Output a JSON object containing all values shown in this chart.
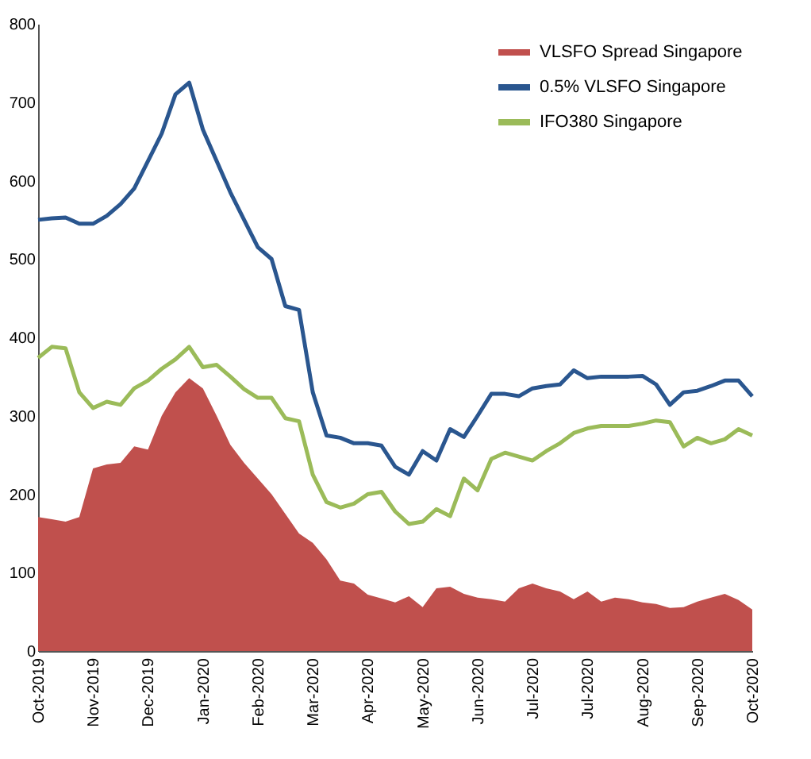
{
  "chart_data": {
    "type": "line",
    "categories": [
      "Oct-2019",
      null,
      null,
      null,
      "Nov-2019",
      null,
      null,
      null,
      "Dec-2019",
      null,
      null,
      null,
      "Jan-2020",
      null,
      null,
      null,
      "Feb-2020",
      null,
      null,
      null,
      "Mar-2020",
      null,
      null,
      null,
      "Apr-2020",
      null,
      null,
      null,
      "May-2020",
      null,
      null,
      null,
      "Jun-2020",
      null,
      null,
      null,
      "Jul-2020",
      null,
      null,
      null,
      "Jul-2020",
      null,
      null,
      null,
      "Aug-2020",
      null,
      null,
      null,
      "Sep-2020",
      null,
      null,
      null,
      "Oct-2020"
    ],
    "series": [
      {
        "name": "VLSFO Spread Singapore",
        "type": "area",
        "color": "#c0504d",
        "values": [
          171,
          168,
          165,
          171,
          233,
          238,
          240,
          261,
          257,
          300,
          330,
          348,
          335,
          300,
          263,
          240,
          220,
          200,
          175,
          150,
          138,
          117,
          90,
          86,
          72,
          67,
          62,
          70,
          56,
          80,
          82,
          73,
          68,
          66,
          63,
          80,
          86,
          80,
          76,
          66,
          76,
          63,
          68,
          66,
          62,
          60,
          55,
          56,
          63,
          68,
          73,
          65,
          53
        ]
      },
      {
        "name": "0.5% VLSFO Singapore",
        "color": "#2a568f",
        "values": [
          550,
          552,
          553,
          545,
          545,
          555,
          570,
          590,
          625,
          660,
          710,
          725,
          665,
          625,
          585,
          550,
          515,
          500,
          440,
          435,
          330,
          275,
          272,
          265,
          265,
          262,
          235,
          225,
          255,
          243,
          283,
          273,
          300,
          328,
          328,
          325,
          335,
          338,
          340,
          358,
          348,
          350,
          350,
          350,
          351,
          340,
          314,
          330,
          332,
          338,
          345,
          345,
          325
        ]
      },
      {
        "name": "IFO380 Singapore",
        "color": "#9bbb59",
        "values": [
          374,
          388,
          386,
          330,
          310,
          318,
          314,
          335,
          345,
          360,
          372,
          388,
          362,
          365,
          350,
          334,
          323,
          323,
          297,
          293,
          225,
          190,
          183,
          188,
          200,
          203,
          178,
          162,
          165,
          181,
          172,
          220,
          205,
          245,
          253,
          248,
          243,
          255,
          265,
          278,
          284,
          287,
          287,
          287,
          290,
          294,
          292,
          261,
          272,
          265,
          270,
          283,
          275
        ]
      }
    ],
    "ylim": [
      0,
      800
    ],
    "yticks": [
      0,
      100,
      200,
      300,
      400,
      500,
      600,
      700,
      800
    ],
    "grid": false,
    "legend": "top right",
    "line_style": "solid",
    "marker": "none"
  }
}
